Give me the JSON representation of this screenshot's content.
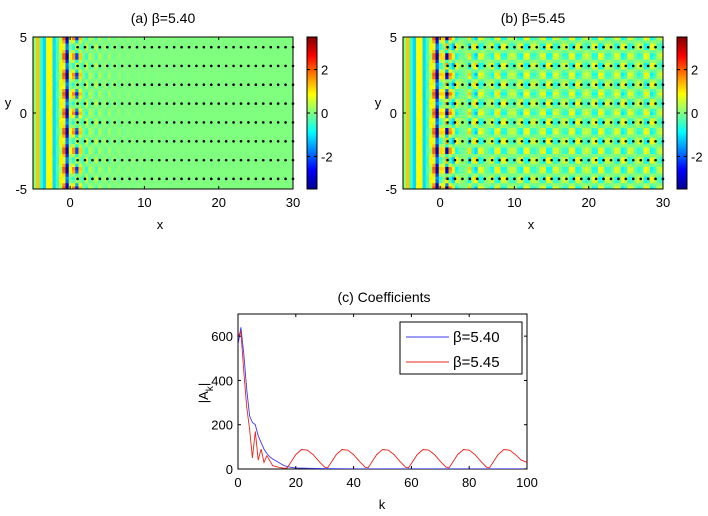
{
  "chart_data": [
    {
      "type": "heatmap",
      "title": "(a) β=5.40",
      "xlabel": "x",
      "ylabel": "y",
      "xlim": [
        -5,
        30
      ],
      "ylim": [
        -5,
        5
      ],
      "xticks": [
        "0",
        "10",
        "20",
        "30"
      ],
      "xtick_values": [
        0,
        10,
        20,
        30
      ],
      "yticks": [
        "5",
        "0",
        "-5"
      ],
      "ytick_values": [
        5,
        0,
        -5
      ],
      "colorbar": {
        "range": [
          -3.5,
          3.5
        ],
        "ticks": [
          "2",
          "0",
          "-2"
        ],
        "tick_values": [
          2,
          0,
          -2
        ]
      },
      "grid_points": {
        "x_range": [
          1,
          30
        ],
        "x_step": 1,
        "y_values": [
          -4.33,
          -3.1,
          -1.86,
          -0.62,
          0.62,
          1.86,
          3.1,
          4.33
        ]
      },
      "description_values": {
        "beta": 5.4
      }
    },
    {
      "type": "heatmap",
      "title": "(b) β=5.45",
      "xlabel": "x",
      "ylabel": "y",
      "xlim": [
        -5,
        30
      ],
      "ylim": [
        -5,
        5
      ],
      "xticks": [
        "0",
        "10",
        "20",
        "30"
      ],
      "xtick_values": [
        0,
        10,
        20,
        30
      ],
      "yticks": [
        "5",
        "0",
        "-5"
      ],
      "ytick_values": [
        5,
        0,
        -5
      ],
      "colorbar": {
        "range": [
          -3.5,
          3.5
        ],
        "ticks": [
          "2",
          "0",
          "-2"
        ],
        "tick_values": [
          2,
          0,
          -2
        ]
      },
      "grid_points": {
        "x_range": [
          1,
          30
        ],
        "x_step": 1,
        "y_values": [
          -4.33,
          -3.1,
          -1.86,
          -0.62,
          0.62,
          1.86,
          3.1,
          4.33
        ]
      },
      "description_values": {
        "beta": 5.45
      }
    },
    {
      "type": "line",
      "title": "(c) Coefficients",
      "xlabel": "k",
      "ylabel": "|A_k|",
      "ylabel_main": "|A",
      "ylabel_sub": "k",
      "ylabel_end": "|",
      "xlim": [
        0,
        100
      ],
      "ylim": [
        0,
        700
      ],
      "xticks": [
        "0",
        "20",
        "40",
        "60",
        "80",
        "100"
      ],
      "xtick_values": [
        0,
        20,
        40,
        60,
        80,
        100
      ],
      "yticks": [
        "0",
        "200",
        "400",
        "600"
      ],
      "ytick_values": [
        0,
        200,
        400,
        600
      ],
      "legend_position": "top-right",
      "series": [
        {
          "name": "β=5.40",
          "color": "#3a3af0",
          "x": [
            0,
            1,
            2,
            3,
            4,
            5,
            6,
            7,
            8,
            9,
            10,
            11,
            12,
            13,
            14,
            15,
            16,
            18,
            20,
            25,
            30,
            40,
            50,
            60,
            70,
            80,
            90,
            100
          ],
          "y": [
            560,
            640,
            520,
            360,
            240,
            210,
            200,
            150,
            120,
            90,
            70,
            55,
            45,
            38,
            30,
            22,
            15,
            8,
            5,
            3,
            2,
            1,
            1,
            1,
            1,
            1,
            1,
            1
          ]
        },
        {
          "name": "β=5.45",
          "color": "#e8241c",
          "x": [
            0,
            1,
            2,
            3,
            4,
            5,
            6,
            7,
            8,
            9,
            10,
            12,
            14,
            16,
            17,
            18,
            20,
            22,
            24,
            26,
            28,
            30,
            31,
            32,
            34,
            36,
            38,
            40,
            42,
            44,
            45,
            46,
            48,
            50,
            52,
            54,
            56,
            58,
            59,
            60,
            62,
            64,
            66,
            68,
            70,
            72,
            73,
            74,
            76,
            78,
            80,
            82,
            84,
            86,
            87,
            88,
            90,
            92,
            94,
            96,
            98,
            100
          ],
          "y": [
            600,
            620,
            440,
            280,
            180,
            50,
            170,
            40,
            90,
            30,
            60,
            15,
            8,
            3,
            5,
            25,
            65,
            88,
            85,
            65,
            35,
            8,
            5,
            25,
            65,
            88,
            85,
            65,
            35,
            8,
            5,
            25,
            65,
            88,
            85,
            65,
            35,
            8,
            5,
            25,
            65,
            88,
            85,
            65,
            35,
            8,
            5,
            25,
            65,
            88,
            85,
            65,
            35,
            8,
            5,
            25,
            65,
            88,
            85,
            65,
            40,
            30
          ]
        }
      ]
    }
  ]
}
